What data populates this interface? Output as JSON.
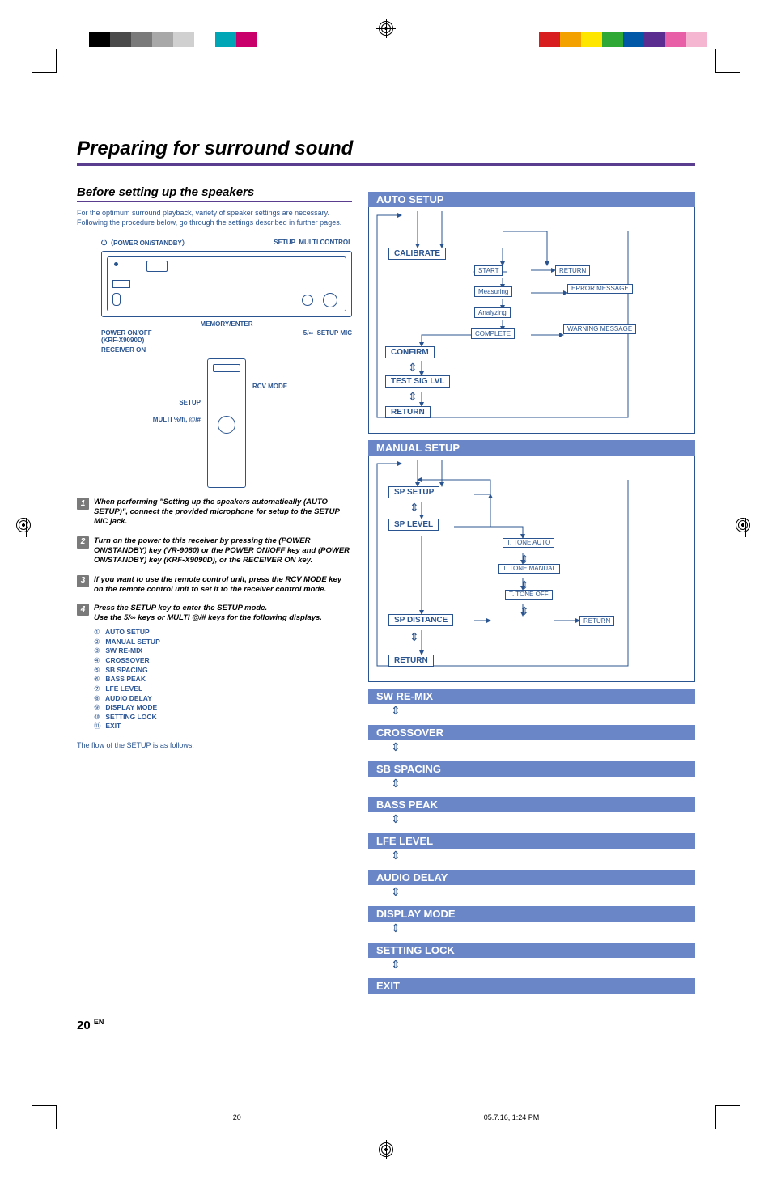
{
  "color_bars_left": [
    "#000000",
    "#4a4a4a",
    "#7a7a7a",
    "#a8a8a8",
    "#d0d0d0",
    "#ffffff",
    "#00a6b5",
    "#c9006b"
  ],
  "color_bars_right": [
    "#d81e1e",
    "#f2a100",
    "#ffe600",
    "#2fa836",
    "#0058a6",
    "#5b2d90",
    "#e85fa8",
    "#f5b6d2"
  ],
  "page": {
    "main_title": "Preparing for surround sound",
    "subtitle": "Before setting up the speakers",
    "intro1": "For the optimum surround playback, variety of speaker settings are necessary.",
    "intro2": "Following the procedure below, go through the settings described in further pages.",
    "page_number": "20",
    "page_suffix": "EN",
    "footer_page": "20",
    "footer_date": "05.7.16, 1:24 PM"
  },
  "receiver": {
    "power_label": "（POWER ON/STANDBY）",
    "setup_top": "SETUP",
    "multi_control": "MULTI CONTROL",
    "memory_enter": "MEMORY/ENTER",
    "power_onoff": "POWER ON/OFF",
    "krf": "(KRF-X9090D)",
    "receiver_on": "RECEIVER ON",
    "setup_left": "SETUP",
    "multi_dir": "MULTI %/ﬁ, @/#",
    "up_down": "5/∞",
    "setup_mic": "SETUP MIC",
    "rcv_mode": "RCV MODE"
  },
  "steps": {
    "s1": "When performing \"Setting up the speakers automatically (AUTO SETUP)\", connect the provided microphone for setup to the SETUP MIC jack.",
    "s2": "Turn on the power to this receiver by pressing the    (POWER ON/STANDBY) key (VR-9080) or the POWER ON/OFF key and    (POWER ON/STANDBY) key (KRF-X9090D), or the RECEIVER ON key.",
    "s3": "If you want to use the remote control unit, press the RCV MODE key on the remote control unit to set it to the receiver control mode.",
    "s4a": "Press the SETUP  key to enter the SETUP mode.",
    "s4b": "Use the 5/∞ keys or MULTI @/# keys  for the following displays.",
    "list": [
      {
        "n": "①",
        "t": "AUTO SETUP"
      },
      {
        "n": "②",
        "t": "MANUAL SETUP"
      },
      {
        "n": "③",
        "t": "SW RE-MIX"
      },
      {
        "n": "④",
        "t": "CROSSOVER"
      },
      {
        "n": "⑤",
        "t": "SB SPACING"
      },
      {
        "n": "⑥",
        "t": "BASS PEAK"
      },
      {
        "n": "⑦",
        "t": "LFE LEVEL"
      },
      {
        "n": "⑧",
        "t": "AUDIO DELAY"
      },
      {
        "n": "⑨",
        "t": "DISPLAY MODE"
      },
      {
        "n": "⑩",
        "t": "SETTING LOCK"
      },
      {
        "n": "⑪",
        "t": "EXIT"
      }
    ],
    "flow_note": "The flow of the SETUP is as follows:"
  },
  "flow": {
    "auto_setup": "AUTO SETUP",
    "calibrate": "CALIBRATE",
    "start": "START",
    "return": "RETURN",
    "measuring": "Measuring",
    "error_msg": "ERROR MESSAGE",
    "analyzing": "Analyzing",
    "complete": "COMPLETE",
    "warning_msg": "WARNING MESSAGE",
    "confirm": "CONFIRM",
    "test_sig": "TEST SIG LVL",
    "manual_setup": "MANUAL SETUP",
    "sp_setup": "SP SETUP",
    "sp_level": "SP LEVEL",
    "t_tone_auto": "T. TONE AUTO",
    "t_tone_manual": "T. TONE MANUAL",
    "t_tone_off": "T. TONE OFF",
    "sp_distance": "SP DISTANCE",
    "sw_remix": "SW RE-MIX",
    "crossover": "CROSSOVER",
    "sb_spacing": "SB SPACING",
    "bass_peak": "BASS PEAK",
    "lfe_level": "LFE LEVEL",
    "audio_delay": "AUDIO DELAY",
    "display_mode": "DISPLAY MODE",
    "setting_lock": "SETTING LOCK",
    "exit": "EXIT"
  }
}
